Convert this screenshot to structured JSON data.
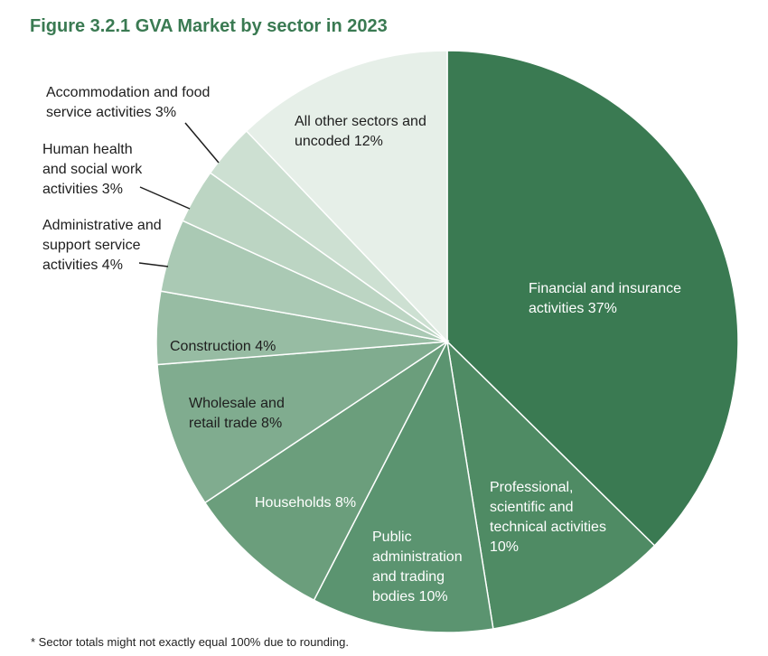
{
  "chart_data": {
    "type": "pie",
    "title": "Figure 3.2.1 GVA Market by sector in 2023",
    "footnote": "* Sector totals might not exactly equal 100% due to rounding.",
    "slices": [
      {
        "label": "Financial and insurance\nactivities 37%",
        "value": 37,
        "color": "#3a7a52"
      },
      {
        "label": "Professional,\nscientific and\ntechnical activities\n10%",
        "value": 10,
        "color": "#4f8b64"
      },
      {
        "label": "Public\nadministration\nand trading\nbodies 10%",
        "value": 10,
        "color": "#5b9470"
      },
      {
        "label": "Households 8%",
        "value": 8,
        "color": "#6b9e7c"
      },
      {
        "label": "Wholesale and\nretail trade 8%",
        "value": 8,
        "color": "#80ac8f"
      },
      {
        "label": "Construction 4%",
        "value": 4,
        "color": "#97bca3"
      },
      {
        "label": "Administrative and\nsupport service\nactivities 4%",
        "value": 4,
        "color": "#aac9b4"
      },
      {
        "label": "Human health\nand social work\nactivities 3%",
        "value": 3,
        "color": "#bcd5c3"
      },
      {
        "label": "Accommodation and food\nservice activities 3%",
        "value": 3,
        "color": "#cde0d2"
      },
      {
        "label": "All other sectors and\nuncoded 12%",
        "value": 12,
        "color": "#e6efe8"
      }
    ]
  }
}
